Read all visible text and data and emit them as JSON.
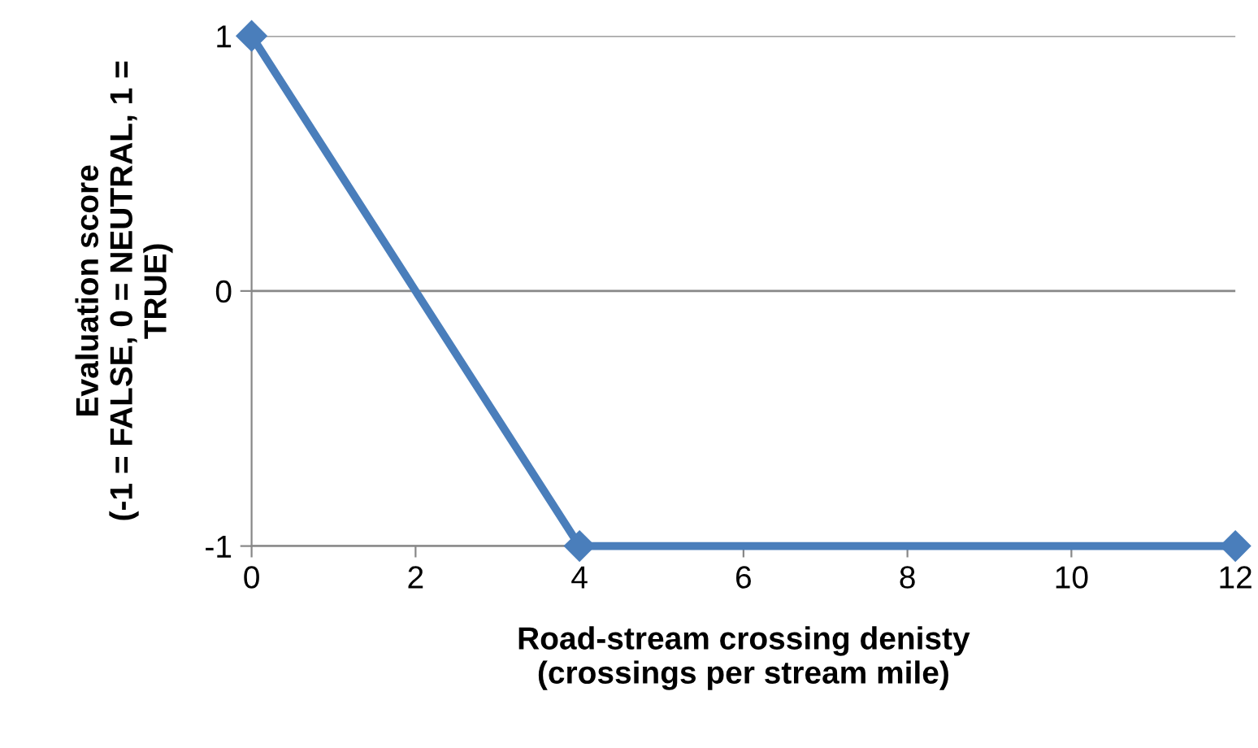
{
  "chart_data": {
    "type": "line",
    "xlabel": "Road-stream crossing denisty\n(crossings per stream mile)",
    "ylabel": "Evaluation score\n(-1 = FALSE, 0 = NEUTRAL, 1 =\nTRUE)",
    "x": [
      0,
      4,
      12
    ],
    "series": [
      {
        "color": "#4a7ebb",
        "values": [
          1,
          -1,
          -1
        ]
      }
    ],
    "xlim": [
      0,
      12
    ],
    "xticks": [
      0,
      2,
      4,
      6,
      8,
      10,
      12
    ],
    "ylim": [
      -1,
      1
    ],
    "yticks": [
      {
        "value": -1,
        "label": "-1"
      },
      0,
      1
    ],
    "grid": "y",
    "marker": "diamond",
    "line_style": "solid",
    "legend": false
  }
}
